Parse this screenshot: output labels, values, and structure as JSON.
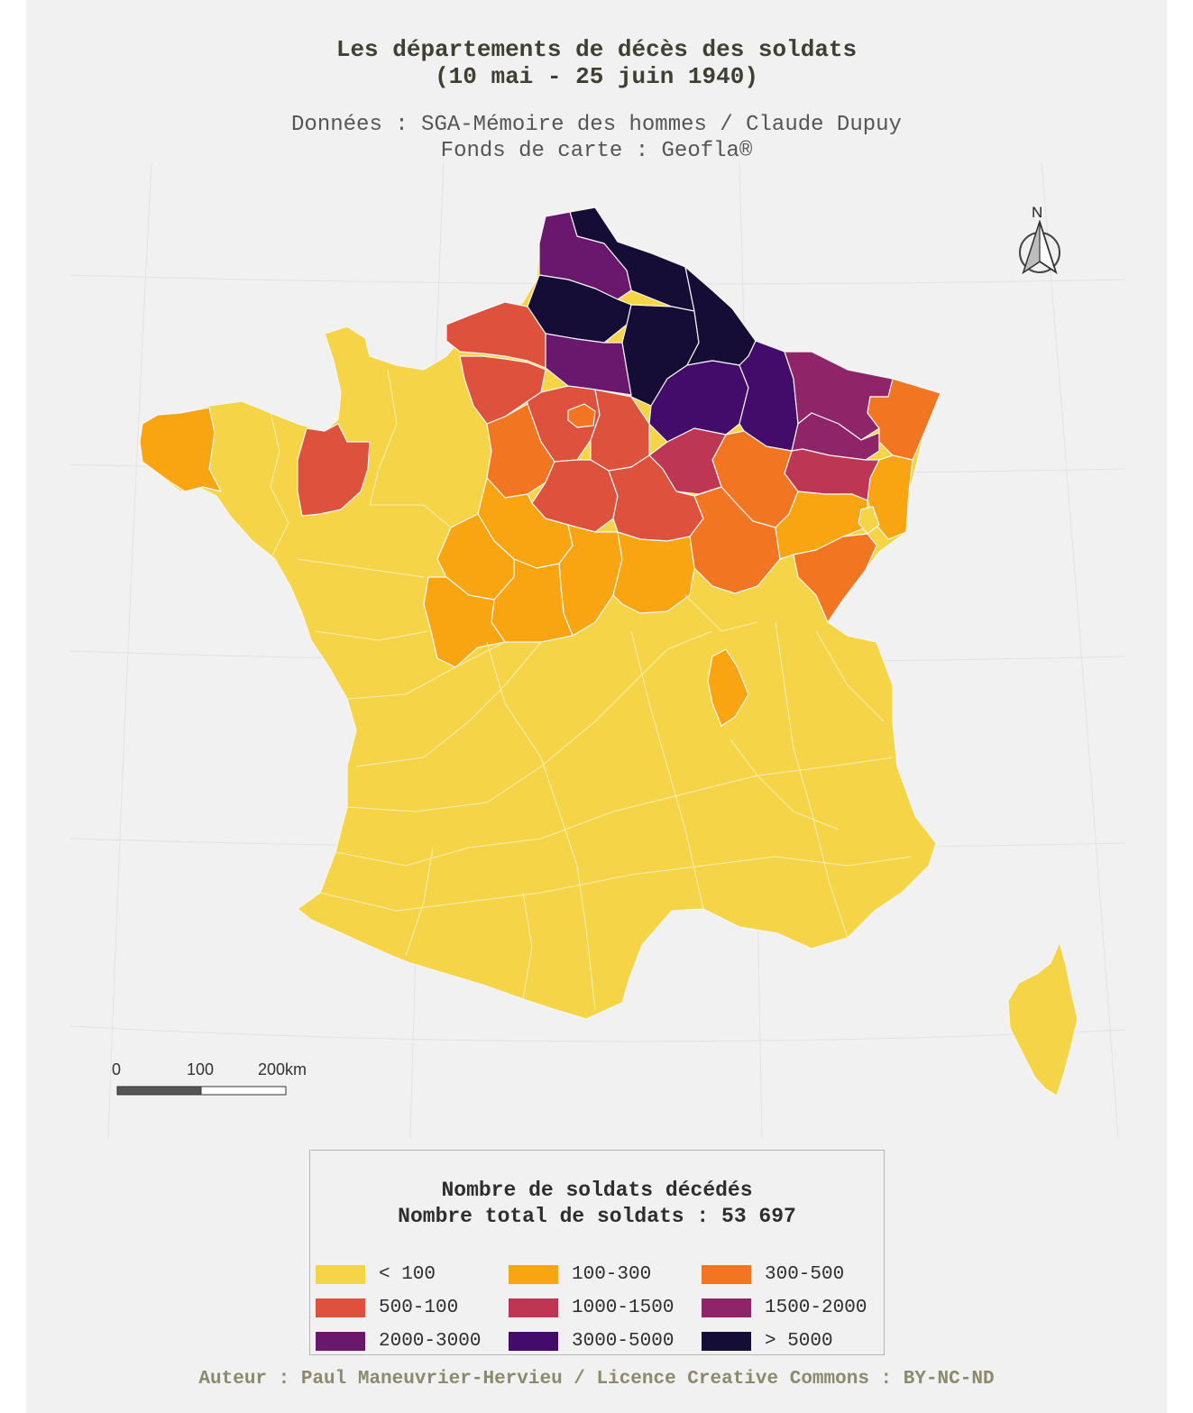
{
  "title": {
    "line1": "Les départements de décès des soldats",
    "line2": "(10 mai - 25 juin 1940)"
  },
  "subtitle": {
    "line1": "Données : SGA-Mémoire des hommes / Claude Dupuy",
    "line2": "Fonds de carte : Geofla®"
  },
  "north_arrow": {
    "label": "N",
    "icon": "north-arrow-icon"
  },
  "scale_bar": {
    "labels": [
      "0",
      "100",
      "200km"
    ]
  },
  "legend": {
    "title_line1": "Nombre de soldats décédés",
    "title_line2": "Nombre total de soldats : 53 697",
    "classes": [
      {
        "label": "< 100",
        "color": "#f5d547"
      },
      {
        "label": "100-300",
        "color": "#f9a512"
      },
      {
        "label": "300-500",
        "color": "#f27622"
      },
      {
        "label": "500-100",
        "color": "#de513c"
      },
      {
        "label": "1000-1500",
        "color": "#bd3755"
      },
      {
        "label": "1500-2000",
        "color": "#8f2469"
      },
      {
        "label": "2000-3000",
        "color": "#6a176e"
      },
      {
        "label": "3000-5000",
        "color": "#430b6a"
      },
      {
        "label": "> 5000",
        "color": "#150d36"
      }
    ]
  },
  "map": {
    "regions": [
      {
        "name": "metropole",
        "color": "#f5d547"
      },
      {
        "name": "corse",
        "color": "#f5d547"
      },
      {
        "name": "nord",
        "color": "#150d36"
      },
      {
        "name": "pas-de-calais",
        "color": "#6a176e"
      },
      {
        "name": "somme",
        "color": "#150d36"
      },
      {
        "name": "aisne",
        "color": "#150d36"
      },
      {
        "name": "ardennes",
        "color": "#150d36"
      },
      {
        "name": "oise",
        "color": "#6a176e"
      },
      {
        "name": "marne",
        "color": "#430b6a"
      },
      {
        "name": "meuse",
        "color": "#430b6a"
      },
      {
        "name": "moselle",
        "color": "#8f2469"
      },
      {
        "name": "meurthe-et-moselle",
        "color": "#8f2469"
      },
      {
        "name": "bas-rhin",
        "color": "#f27622"
      },
      {
        "name": "haut-rhin",
        "color": "#f9a512"
      },
      {
        "name": "vosges",
        "color": "#bd3755"
      },
      {
        "name": "haute-marne",
        "color": "#f27622"
      },
      {
        "name": "aube",
        "color": "#bd3755"
      },
      {
        "name": "seine-maritime",
        "color": "#de513c"
      },
      {
        "name": "eure",
        "color": "#de513c"
      },
      {
        "name": "ile-de-france",
        "color": "#de513c"
      },
      {
        "name": "paris",
        "color": "#f27622"
      },
      {
        "name": "seine-et-marne",
        "color": "#de513c"
      },
      {
        "name": "eure-et-loir",
        "color": "#f27622"
      },
      {
        "name": "loiret",
        "color": "#de513c"
      },
      {
        "name": "yonne",
        "color": "#de513c"
      },
      {
        "name": "cote-d-or",
        "color": "#f27622"
      },
      {
        "name": "haute-saone",
        "color": "#f9a512"
      },
      {
        "name": "territoire-de-belfort",
        "color": "#f5d547"
      },
      {
        "name": "doubs",
        "color": "#f27622"
      },
      {
        "name": "loir-et-cher",
        "color": "#f9a512"
      },
      {
        "name": "cher",
        "color": "#f9a512"
      },
      {
        "name": "nievre",
        "color": "#f9a512"
      },
      {
        "name": "indre-et-loire",
        "color": "#f9a512"
      },
      {
        "name": "indre",
        "color": "#f9a512"
      },
      {
        "name": "vienne",
        "color": "#f9a512"
      },
      {
        "name": "finistere",
        "color": "#f9a512"
      },
      {
        "name": "ille-et-vilaine",
        "color": "#de513c"
      },
      {
        "name": "loire",
        "color": "#f9a512"
      }
    ]
  }
}
